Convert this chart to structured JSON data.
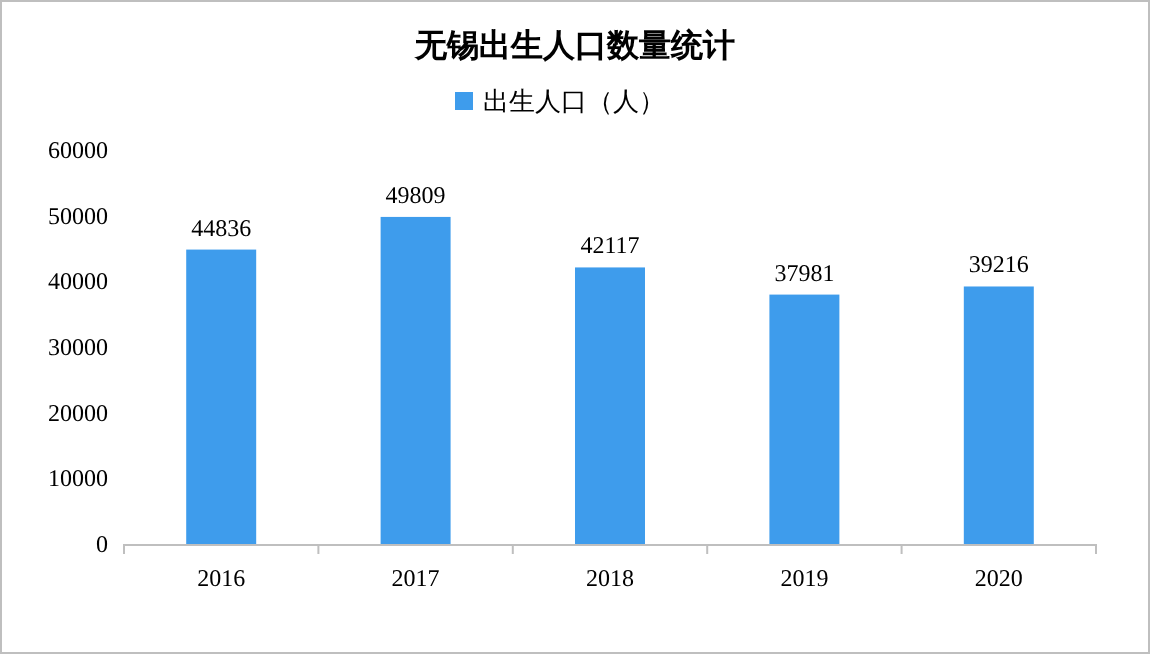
{
  "chart_data": {
    "type": "bar",
    "title": "无锡出生人口数量统计",
    "categories": [
      "2016",
      "2017",
      "2018",
      "2019",
      "2020"
    ],
    "series": [
      {
        "name": "出生人口（人）",
        "color": "#3e9cec",
        "values": [
          44836,
          49809,
          42117,
          37981,
          39216
        ]
      }
    ],
    "ylim": [
      0,
      60000
    ],
    "yticks": [
      0,
      10000,
      20000,
      30000,
      40000,
      50000,
      60000
    ],
    "data_labels": true,
    "legend": "top",
    "grid": false
  }
}
